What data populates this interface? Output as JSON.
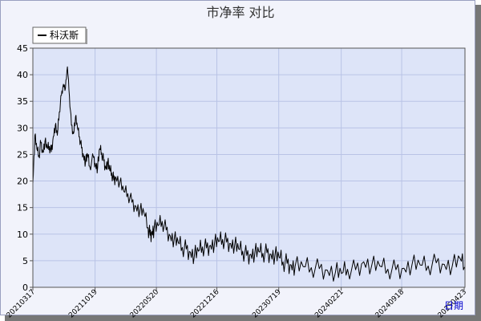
{
  "chart_data": {
    "type": "line",
    "title": "市净率  对比",
    "xlabel": "日期",
    "ylabel": "",
    "ylim": [
      0,
      45
    ],
    "y_ticks": [
      0,
      5,
      10,
      15,
      20,
      25,
      30,
      35,
      40,
      45
    ],
    "x_ticks": [
      "20210317",
      "20211019",
      "20220520",
      "20221216",
      "20230719",
      "20240221",
      "20240918",
      "20250423"
    ],
    "grid": true,
    "legend_position": "top-left",
    "colors": {
      "line": "#000000",
      "plot_bg": "#dde4f8",
      "frame_bg": "#f2f3fb",
      "grid": "#b9c3e6",
      "xlabel": "#0000cc"
    },
    "series": [
      {
        "name": "科沃斯",
        "x": [
          "2021-03-17",
          "2021-03-24",
          "2021-03-31",
          "2021-04-07",
          "2021-04-14",
          "2021-04-21",
          "2021-04-28",
          "2021-05-06",
          "2021-05-13",
          "2021-05-20",
          "2021-05-27",
          "2021-06-03",
          "2021-06-10",
          "2021-06-17",
          "2021-06-24",
          "2021-07-01",
          "2021-07-08",
          "2021-07-15",
          "2021-07-22",
          "2021-07-29",
          "2021-08-05",
          "2021-08-12",
          "2021-08-19",
          "2021-08-26",
          "2021-09-02",
          "2021-09-09",
          "2021-09-16",
          "2021-09-23",
          "2021-09-30",
          "2021-10-14",
          "2021-10-21",
          "2021-10-28",
          "2021-11-04",
          "2021-11-11",
          "2021-11-18",
          "2021-11-25",
          "2021-12-02",
          "2021-12-09",
          "2021-12-16",
          "2021-12-23",
          "2021-12-30",
          "2022-01-13",
          "2022-01-27",
          "2022-02-10",
          "2022-02-24",
          "2022-03-10",
          "2022-03-24",
          "2022-04-07",
          "2022-04-21",
          "2022-04-28",
          "2022-05-05",
          "2022-05-12",
          "2022-05-26",
          "2022-06-09",
          "2022-06-23",
          "2022-07-07",
          "2022-07-21",
          "2022-08-04",
          "2022-08-18",
          "2022-09-01",
          "2022-09-15",
          "2022-09-29",
          "2022-10-13",
          "2022-10-27",
          "2022-11-10",
          "2022-11-24",
          "2022-12-08",
          "2022-12-22",
          "2023-01-05",
          "2023-01-19",
          "2023-02-02",
          "2023-02-16",
          "2023-03-02",
          "2023-03-16",
          "2023-03-30",
          "2023-04-13",
          "2023-04-27",
          "2023-05-11",
          "2023-05-25",
          "2023-06-08",
          "2023-06-22",
          "2023-07-06",
          "2023-07-20",
          "2023-08-03",
          "2023-08-17",
          "2023-08-31",
          "2023-09-14",
          "2023-10-12",
          "2023-11-09",
          "2023-12-07",
          "2024-01-04",
          "2024-02-01",
          "2024-02-22",
          "2024-03-14",
          "2024-04-11",
          "2024-05-09",
          "2024-06-06",
          "2024-07-04",
          "2024-08-01",
          "2024-08-29",
          "2024-09-26",
          "2024-10-24",
          "2024-11-21",
          "2024-12-19",
          "2025-01-16",
          "2025-02-13",
          "2025-03-13",
          "2025-04-10",
          "2025-04-24"
        ],
        "values": [
          19.5,
          28.6,
          26.0,
          24.8,
          27.2,
          25.4,
          27.5,
          26.1,
          26.5,
          25.5,
          28.4,
          30.5,
          28.6,
          33.0,
          36.1,
          38.2,
          37.4,
          41.5,
          36.0,
          30.5,
          28.9,
          32.1,
          30.0,
          28.3,
          26.2,
          24.8,
          23.5,
          25.0,
          22.8,
          24.4,
          23.0,
          22.5,
          26.1,
          25.3,
          23.8,
          22.5,
          23.6,
          22.0,
          21.5,
          20.2,
          20.8,
          19.8,
          18.0,
          17.6,
          16.0,
          15.2,
          14.5,
          14.0,
          11.2,
          9.8,
          10.5,
          11.0,
          11.6,
          12.4,
          10.8,
          9.7,
          9.0,
          8.4,
          7.5,
          7.2,
          6.6,
          6.0,
          6.8,
          7.6,
          7.4,
          7.9,
          8.3,
          8.6,
          9.0,
          8.5,
          8.2,
          8.0,
          7.2,
          6.8,
          6.0,
          6.2,
          6.5,
          6.7,
          6.4,
          6.5,
          6.2,
          6.0,
          5.7,
          4.8,
          4.5,
          4.2,
          4.0,
          3.9,
          3.7,
          3.5,
          3.2,
          2.9,
          2.6,
          3.4,
          3.3,
          4.8,
          4.1,
          4.0,
          3.4,
          3.3,
          3.6,
          4.3,
          4.2,
          4.0,
          4.6,
          4.3,
          4.1,
          5.3,
          3.8
        ]
      }
    ]
  }
}
